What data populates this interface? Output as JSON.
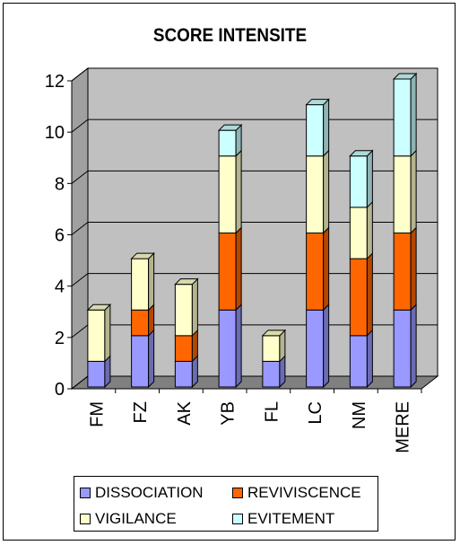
{
  "chart_data": {
    "type": "bar",
    "stacked": true,
    "title": "SCORE INTENSITE",
    "categories": [
      "FM",
      "FZ",
      "AK",
      "YB",
      "FL",
      "LC",
      "NM",
      "MERE"
    ],
    "series": [
      {
        "name": "DISSOCIATION",
        "values": [
          1,
          2,
          1,
          3,
          1,
          3,
          2,
          3
        ],
        "color": "#9999ff"
      },
      {
        "name": "REVIVISCENCE",
        "values": [
          0,
          1,
          1,
          3,
          0,
          3,
          3,
          3
        ],
        "color": "#ff6600"
      },
      {
        "name": "VIGILANCE",
        "values": [
          2,
          2,
          2,
          3,
          1,
          3,
          2,
          3
        ],
        "color": "#ffffcc"
      },
      {
        "name": "EVITEMENT",
        "values": [
          0,
          0,
          0,
          1,
          0,
          2,
          2,
          3
        ],
        "color": "#ccffff"
      }
    ],
    "yticks": [
      "0",
      "2",
      "4",
      "6",
      "8",
      "10",
      "12"
    ],
    "ylim": [
      0,
      12
    ],
    "grid": true,
    "legend": "bottom"
  }
}
